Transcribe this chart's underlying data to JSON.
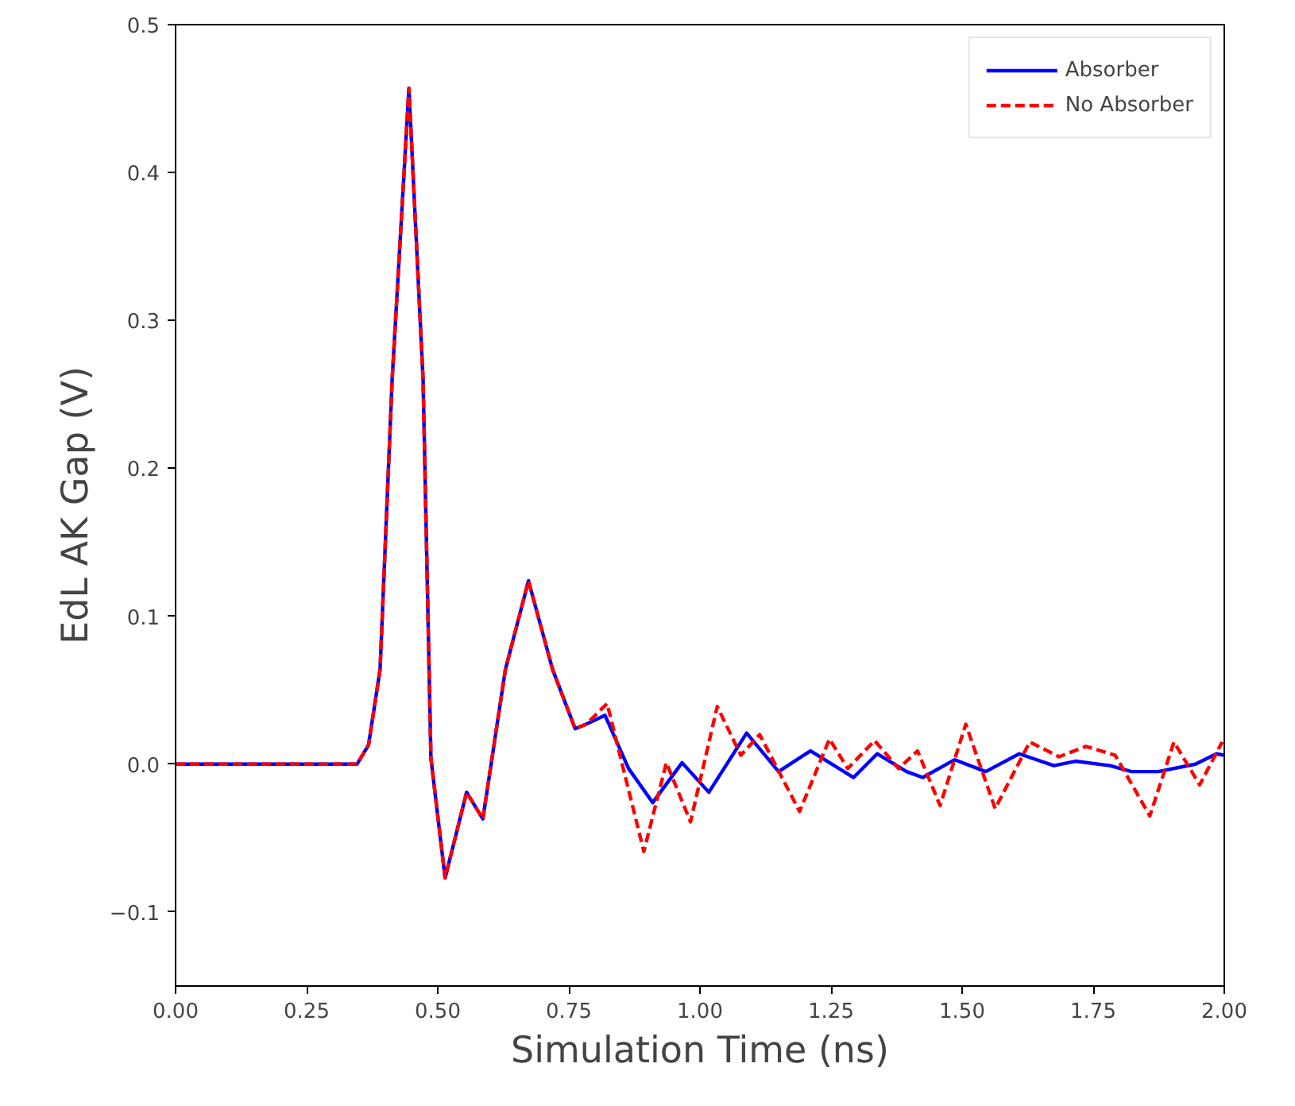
{
  "chart_data": {
    "type": "line",
    "xlabel": "Simulation Time (ns)",
    "ylabel": "EdL AK Gap (V)",
    "xlim": [
      0,
      2
    ],
    "ylim": [
      -0.15,
      0.5
    ],
    "xticks": [
      {
        "value": 0,
        "label": "0.00"
      },
      {
        "value": 0.25,
        "label": "0.25"
      },
      {
        "value": 0.5,
        "label": "0.50"
      },
      {
        "value": 0.75,
        "label": "0.75"
      },
      {
        "value": 1,
        "label": "1.00"
      },
      {
        "value": 1.25,
        "label": "1.25"
      },
      {
        "value": 1.5,
        "label": "1.50"
      },
      {
        "value": 1.75,
        "label": "1.75"
      },
      {
        "value": 2,
        "label": "2.00"
      }
    ],
    "yticks": [
      {
        "value": -0.1,
        "label": "−0.1"
      },
      {
        "value": 0,
        "label": "0.0"
      },
      {
        "value": 0.1,
        "label": "0.1"
      },
      {
        "value": 0.2,
        "label": "0.2"
      },
      {
        "value": 0.3,
        "label": "0.3"
      },
      {
        "value": 0.4,
        "label": "0.4"
      },
      {
        "value": 0.5,
        "label": "0.5"
      }
    ],
    "grid": false,
    "legend": "top right",
    "series": [
      {
        "name": "Absorber",
        "color": "#0000ff",
        "line_style": "solid",
        "x": [
          0,
          0.3,
          0.346,
          0.368,
          0.39,
          0.413,
          0.445,
          0.472,
          0.487,
          0.514,
          0.555,
          0.586,
          0.629,
          0.673,
          0.719,
          0.762,
          0.783,
          0.819,
          0.864,
          0.91,
          0.966,
          1.017,
          1.089,
          1.15,
          1.211,
          1.293,
          1.338,
          1.394,
          1.425,
          1.486,
          1.545,
          1.609,
          1.675,
          1.716,
          1.782,
          1.823,
          1.874,
          1.945,
          1.985,
          2.0
        ],
        "values": [
          0,
          0,
          0,
          0.013,
          0.064,
          0.26,
          0.457,
          0.26,
          0.004,
          -0.077,
          -0.019,
          -0.037,
          0.064,
          0.124,
          0.064,
          0.024,
          0.027,
          0.033,
          -0.003,
          -0.026,
          0.001,
          -0.019,
          0.021,
          -0.005,
          0.009,
          -0.009,
          0.007,
          -0.005,
          -0.009,
          0.003,
          -0.005,
          0.007,
          -0.001,
          0.002,
          -0.001,
          -0.005,
          -0.005,
          0,
          0.007,
          0.006
        ]
      },
      {
        "name": "No Absorber",
        "color": "#ff0000",
        "line_style": "dashed",
        "x": [
          0,
          0.3,
          0.346,
          0.368,
          0.39,
          0.413,
          0.445,
          0.472,
          0.487,
          0.514,
          0.555,
          0.586,
          0.629,
          0.673,
          0.719,
          0.762,
          0.783,
          0.823,
          0.893,
          0.936,
          0.982,
          1.033,
          1.078,
          1.114,
          1.19,
          1.247,
          1.282,
          1.333,
          1.379,
          1.415,
          1.458,
          1.507,
          1.563,
          1.629,
          1.685,
          1.736,
          1.792,
          1.858,
          1.904,
          1.953,
          1.996
        ],
        "values": [
          0,
          0,
          0,
          0.013,
          0.064,
          0.26,
          0.457,
          0.26,
          0.004,
          -0.077,
          -0.019,
          -0.037,
          0.064,
          0.124,
          0.064,
          0.024,
          0.027,
          0.041,
          -0.059,
          0.001,
          -0.039,
          0.039,
          0.006,
          0.02,
          -0.032,
          0.017,
          -0.003,
          0.016,
          -0.003,
          0.009,
          -0.028,
          0.027,
          -0.03,
          0.015,
          0.005,
          0.012,
          0.006,
          -0.035,
          0.015,
          -0.014,
          0.015
        ]
      }
    ]
  }
}
